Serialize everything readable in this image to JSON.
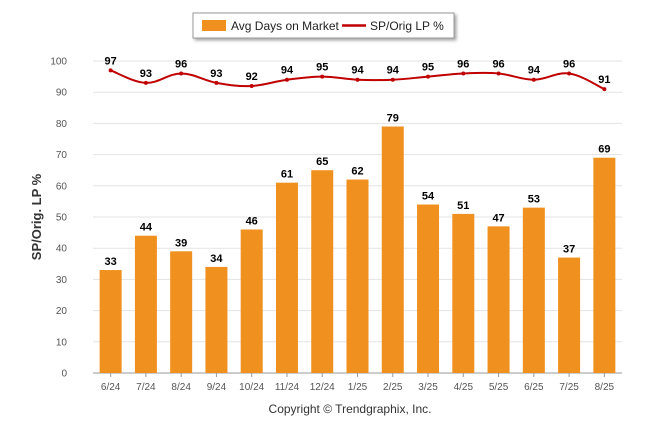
{
  "chart_data": {
    "type": "bar",
    "categories": [
      "6/24",
      "7/24",
      "8/24",
      "9/24",
      "10/24",
      "11/24",
      "12/24",
      "1/25",
      "2/25",
      "3/25",
      "4/25",
      "5/25",
      "6/25",
      "7/25",
      "8/25"
    ],
    "series": [
      {
        "name": "Avg Days on Market",
        "type": "bar",
        "color": "#F0901E",
        "values": [
          33,
          44,
          39,
          34,
          46,
          61,
          65,
          62,
          79,
          54,
          51,
          47,
          53,
          37,
          69
        ]
      },
      {
        "name": "SP/Orig LP %",
        "type": "line",
        "color": "#C00000",
        "values": [
          97,
          93,
          96,
          93,
          92,
          94,
          95,
          94,
          94,
          95,
          96,
          96,
          94,
          96,
          91
        ]
      }
    ],
    "ylabel": "SP/Orig. LP %",
    "ylim": [
      0,
      100
    ],
    "yticks": [
      "0",
      "10",
      "20",
      "30",
      "40",
      "50",
      "60",
      "70",
      "80",
      "90",
      "100"
    ],
    "grid": true,
    "legend_position": "top-center"
  },
  "footer": {
    "copyright": "Copyright © Trendgraphix, Inc."
  }
}
